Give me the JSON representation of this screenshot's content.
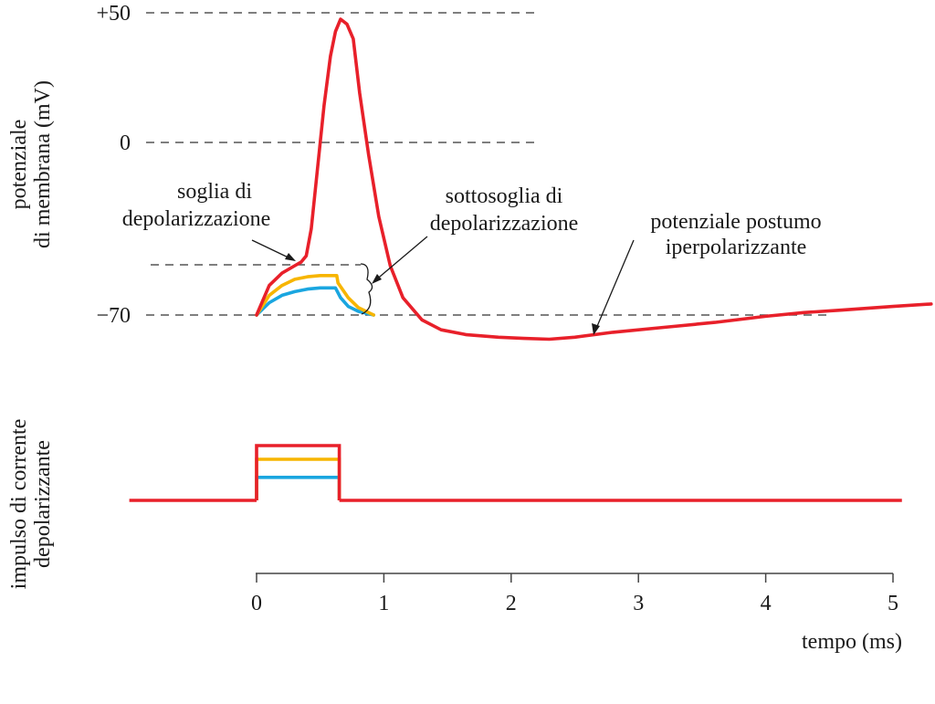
{
  "colors": {
    "suprathreshold": "#e8202a",
    "subthreshold_high": "#f7b500",
    "subthreshold_low": "#1aa6e0",
    "reference": "#555555"
  },
  "chart_data": [
    {
      "type": "line",
      "panel": "membrane-potential",
      "ylabel_lines": [
        "potenziale",
        "di membrana (mV)"
      ],
      "y_ticks": [
        {
          "value": 50,
          "label": "+50"
        },
        {
          "value": 0,
          "label": "0"
        },
        {
          "value": -70,
          "label": "−70"
        }
      ],
      "reference_lines_mV": [
        50,
        0,
        -50,
        -70
      ],
      "xlim": [
        0,
        5
      ],
      "series": [
        {
          "color_key": "suprathreshold",
          "x": [
            0,
            0.1,
            0.2,
            0.3,
            0.35,
            0.39,
            0.43,
            0.48,
            0.53,
            0.58,
            0.62,
            0.66,
            0.71,
            0.76,
            0.81,
            0.88,
            0.96,
            1.05,
            1.15,
            1.3,
            1.45,
            1.65,
            1.9,
            2.1,
            2.3,
            2.5,
            2.8,
            3.2,
            3.6,
            4.0,
            4.3,
            4.6,
            5.0,
            5.3
          ],
          "y": [
            -70,
            -58,
            -53,
            -50,
            -48.5,
            -46,
            -35,
            -10,
            15,
            35,
            45,
            50,
            48,
            42,
            20,
            -5,
            -30,
            -50,
            -63,
            -72,
            -76,
            -78,
            -79,
            -79.5,
            -79.8,
            -79,
            -77,
            -75,
            -73,
            -70.5,
            -69,
            -68,
            -66.5,
            -65.5
          ]
        },
        {
          "color_key": "subthreshold_high",
          "x": [
            0,
            0.1,
            0.2,
            0.3,
            0.4,
            0.5,
            0.55,
            0.63,
            0.64,
            0.64,
            0.72,
            0.8,
            0.92
          ],
          "y": [
            -70,
            -62,
            -58,
            -55.5,
            -54.5,
            -54,
            -54,
            -54,
            -57,
            -57,
            -63,
            -67,
            -70
          ]
        },
        {
          "color_key": "subthreshold_low",
          "x": [
            0,
            0.1,
            0.2,
            0.3,
            0.4,
            0.5,
            0.55,
            0.62,
            0.66,
            0.72,
            0.8,
            0.92
          ],
          "y": [
            -70,
            -65,
            -62,
            -60.5,
            -59.5,
            -59,
            -59,
            -59,
            -63,
            -66.5,
            -68.5,
            -70
          ]
        }
      ],
      "annotations": [
        {
          "lines": [
            "soglia di",
            "depolarizzazione"
          ]
        },
        {
          "lines": [
            "sottosoglia di",
            "depolarizzazione"
          ]
        },
        {
          "lines": [
            "potenziale postumo",
            "iperpolarizzante"
          ]
        }
      ]
    },
    {
      "type": "line",
      "panel": "stimulus-current",
      "ylabel_lines": [
        "impulso di corrente",
        "depolarizzante"
      ],
      "xlabel": "tempo (ms)",
      "x_ticks": [
        "0",
        "1",
        "2",
        "3",
        "4",
        "5"
      ],
      "xlim": [
        0,
        5
      ],
      "pulse_start_ms": 0,
      "pulse_end_ms": 0.65,
      "baseline_span_ms": [
        -1,
        5.07
      ],
      "pulse_levels": [
        {
          "color_key": "suprathreshold",
          "level": 1.0
        },
        {
          "color_key": "subthreshold_high",
          "level": 0.75
        },
        {
          "color_key": "subthreshold_low",
          "level": 0.42
        }
      ]
    }
  ]
}
